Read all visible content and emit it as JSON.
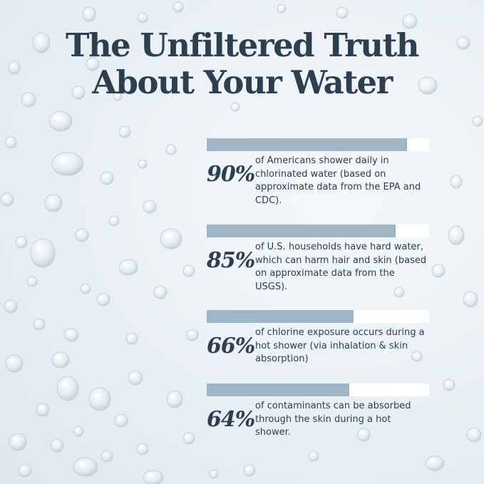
{
  "title": {
    "line1": "The Unfiltered Truth",
    "line2": "About Your Water"
  },
  "stats": [
    {
      "value": 90,
      "percent_label": "90%",
      "text": "of Americans shower daily in chlorinated water (based on approximate data from the EPA and CDC)."
    },
    {
      "value": 85,
      "percent_label": "85%",
      "text": "of U.S. households have hard water, which can harm hair and skin (based on approximate data from the USGS)."
    },
    {
      "value": 66,
      "percent_label": "66%",
      "text": "of chlorine exposure occurs during a hot shower (via inhalation & skin absorption)"
    },
    {
      "value": 64,
      "percent_label": "64%",
      "text": "of contaminants can be absorbed through the skin during a hot shower."
    }
  ],
  "colors": {
    "text": "#2c3e50",
    "bar_fill": "#9fb6c8",
    "bar_track": "#ffffff"
  }
}
